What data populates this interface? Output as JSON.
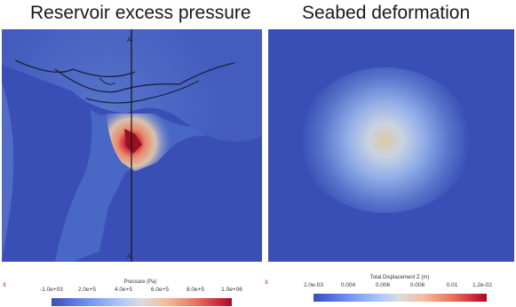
{
  "titles": {
    "left": "Reservoir excess pressure",
    "right": "Seabed deformation"
  },
  "left_panel": {
    "section_label_top": "A",
    "section_label_bottom": "A'",
    "colorbar": {
      "title": "Pressure (Pa)",
      "ticks": [
        "-1.0e+03",
        "2.0e+5",
        "4.0e+5",
        "6.0e+5",
        "8.0e+5",
        "1.0e+06"
      ]
    }
  },
  "right_panel": {
    "colorbar": {
      "title": "Total Displacement Z (m)",
      "ticks": [
        "2.0e-03",
        "0.004",
        "0.006",
        "0.008",
        "0.01",
        "1.2e-02"
      ]
    }
  },
  "axis_marker": "x",
  "colors": {
    "background_blue": "#3a4fb5",
    "hot_red": "#b40426",
    "warm_beige": "#ddc9a6"
  }
}
